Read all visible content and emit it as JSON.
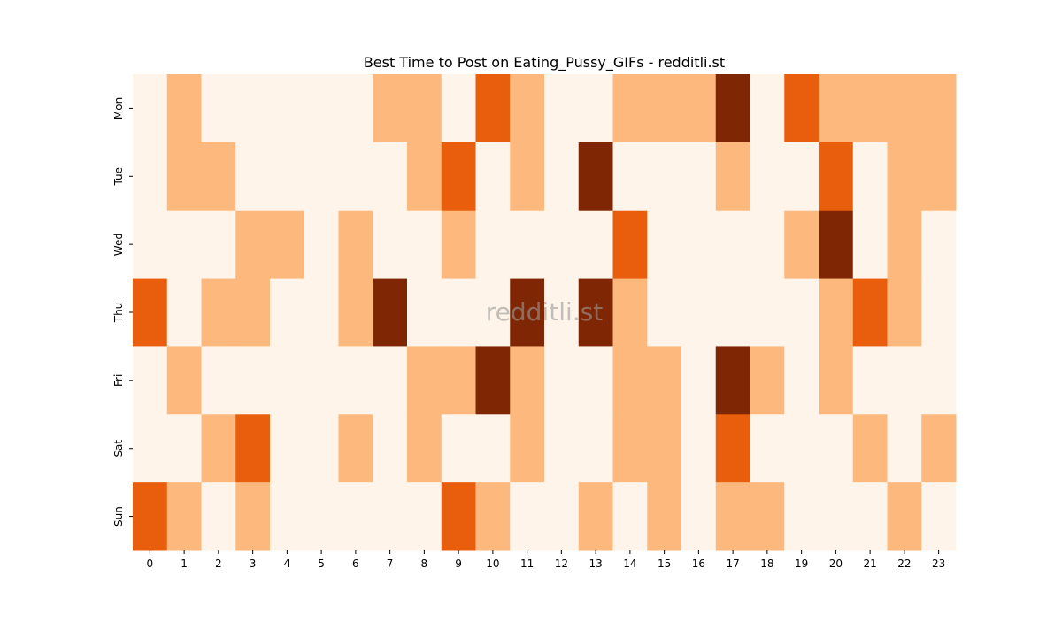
{
  "chart_data": {
    "type": "heatmap",
    "title": "Best Time to Post on Eating_Pussy_GIFs - redditli.st",
    "watermark": "redditli.st",
    "xlabel": "",
    "ylabel": "",
    "x_categories": [
      "0",
      "1",
      "2",
      "3",
      "4",
      "5",
      "6",
      "7",
      "8",
      "9",
      "10",
      "11",
      "12",
      "13",
      "14",
      "15",
      "16",
      "17",
      "18",
      "19",
      "20",
      "21",
      "22",
      "23"
    ],
    "y_categories": [
      "Mon",
      "Tue",
      "Wed",
      "Thu",
      "Fri",
      "Sat",
      "Sun"
    ],
    "colormap": "Oranges",
    "level_colors": [
      "#fef4e9",
      "#fdb97d",
      "#e95e0d",
      "#7f2704"
    ],
    "values": [
      [
        0,
        1,
        0,
        0,
        0,
        0,
        0,
        1,
        1,
        0,
        2,
        1,
        0,
        0,
        1,
        1,
        1,
        3,
        0,
        2,
        1,
        1,
        1,
        1
      ],
      [
        0,
        1,
        1,
        0,
        0,
        0,
        0,
        0,
        1,
        2,
        0,
        1,
        0,
        3,
        0,
        0,
        0,
        1,
        0,
        0,
        2,
        0,
        1,
        1
      ],
      [
        0,
        0,
        0,
        1,
        1,
        0,
        1,
        0,
        0,
        1,
        0,
        0,
        0,
        0,
        2,
        0,
        0,
        0,
        0,
        1,
        3,
        0,
        1,
        0
      ],
      [
        2,
        0,
        1,
        1,
        0,
        0,
        1,
        3,
        0,
        0,
        0,
        3,
        0,
        3,
        1,
        0,
        0,
        0,
        0,
        0,
        1,
        2,
        1,
        0
      ],
      [
        0,
        1,
        0,
        0,
        0,
        0,
        0,
        0,
        1,
        1,
        3,
        1,
        0,
        0,
        1,
        1,
        0,
        3,
        1,
        0,
        1,
        0,
        0,
        0
      ],
      [
        0,
        0,
        1,
        2,
        0,
        0,
        1,
        0,
        1,
        0,
        0,
        1,
        0,
        0,
        1,
        1,
        0,
        2,
        0,
        0,
        0,
        1,
        0,
        1
      ],
      [
        2,
        1,
        0,
        1,
        0,
        0,
        0,
        0,
        0,
        2,
        1,
        0,
        0,
        1,
        0,
        1,
        0,
        1,
        1,
        0,
        0,
        0,
        1,
        0
      ]
    ]
  }
}
